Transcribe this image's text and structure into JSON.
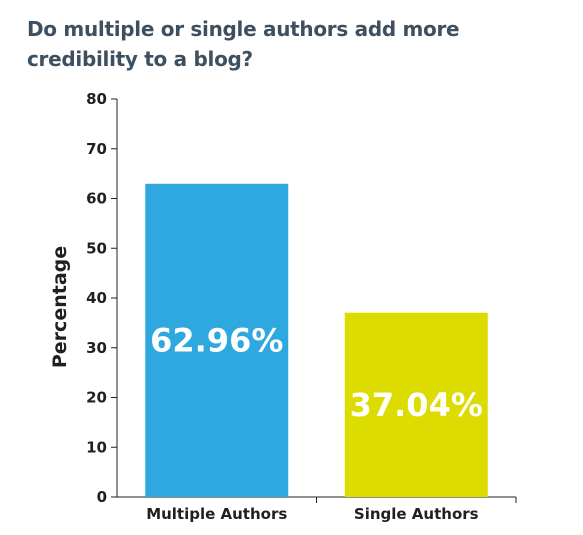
{
  "chart_data": {
    "type": "bar",
    "title": "Do multiple or single authors add more credibility to a blog?",
    "xlabel": "",
    "ylabel": "Percentage",
    "categories": [
      "Multiple Authors",
      "Single Authors"
    ],
    "values": [
      62.96,
      37.04
    ],
    "data_labels": [
      "62.96%",
      "37.04%"
    ],
    "ylim": [
      0,
      80
    ],
    "yticks": [
      0,
      10,
      20,
      30,
      40,
      50,
      60,
      70,
      80
    ],
    "grid": false,
    "legend": "none",
    "colors": [
      "#2fa8e0",
      "#dcdc00"
    ]
  }
}
